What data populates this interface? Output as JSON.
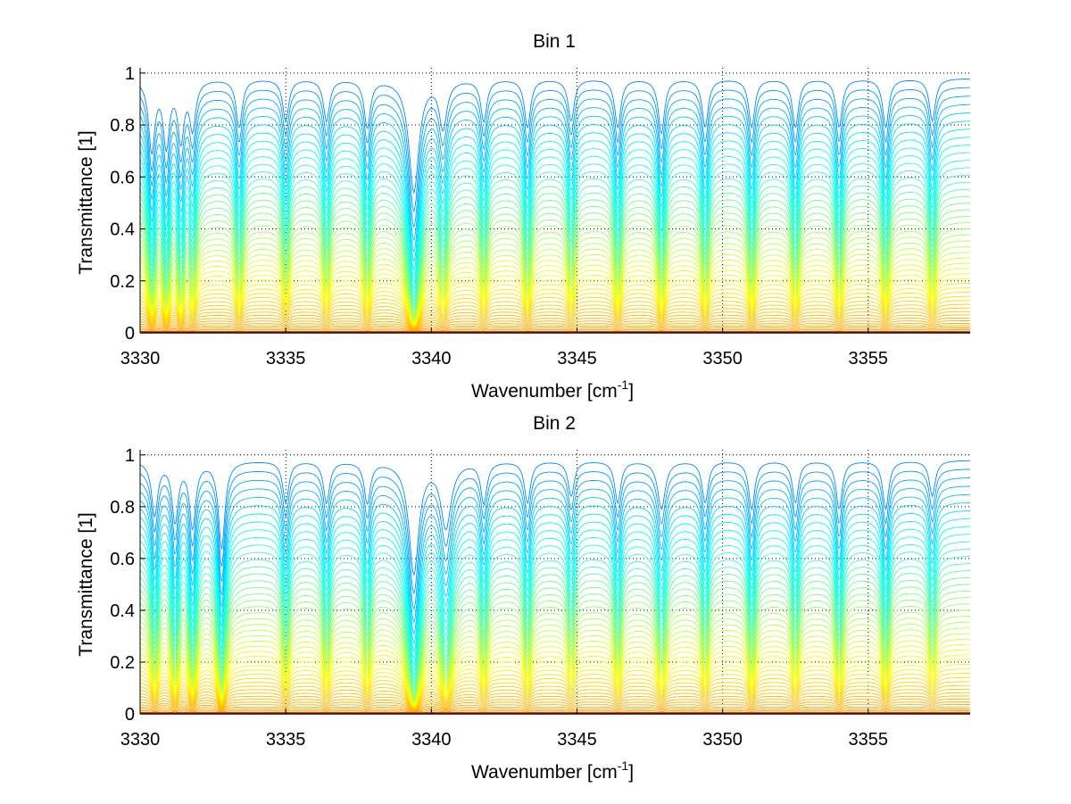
{
  "chart_data": [
    {
      "type": "line",
      "title": "Bin 1",
      "xlabel": "Wavenumber [cm",
      "xlabel_sup": "-1",
      "xlabel_close": "]",
      "ylabel": "Transmittance [1]",
      "xlim": [
        3330,
        3358.5
      ],
      "ylim": [
        0,
        1.02
      ],
      "xticks": [
        3330,
        3335,
        3340,
        3345,
        3350,
        3355
      ],
      "xtick_labels": [
        "3330",
        "3335",
        "3340",
        "3345",
        "3350",
        "3355"
      ],
      "yticks": [
        0,
        0.2,
        0.4,
        0.6,
        0.8,
        1
      ],
      "ytick_labels": [
        "0",
        "0.2",
        "0.4",
        "0.6",
        "0.8",
        "1"
      ],
      "grid": true,
      "grid_style": "dotted",
      "colormap": [
        "#00008f",
        "#0080ff",
        "#00ffff",
        "#80ff80",
        "#ffff00",
        "#ff8000",
        "#800000"
      ],
      "series_count": 48,
      "baseline_transmittance_range": [
        0.0,
        0.98
      ],
      "absorption_lines": [
        {
          "x": 3330.4,
          "depth": 0.55,
          "width": 0.12
        },
        {
          "x": 3330.9,
          "depth": 0.5,
          "width": 0.12
        },
        {
          "x": 3331.4,
          "depth": 0.45,
          "width": 0.12
        },
        {
          "x": 3331.8,
          "depth": 0.35,
          "width": 0.12
        },
        {
          "x": 3333.4,
          "depth": 0.35,
          "width": 0.12
        },
        {
          "x": 3335.0,
          "depth": 0.3,
          "width": 0.12
        },
        {
          "x": 3336.4,
          "depth": 0.3,
          "width": 0.12
        },
        {
          "x": 3337.8,
          "depth": 0.35,
          "width": 0.12
        },
        {
          "x": 3339.4,
          "depth": 0.97,
          "width": 0.18
        },
        {
          "x": 3340.4,
          "depth": 0.35,
          "width": 0.15
        },
        {
          "x": 3341.8,
          "depth": 0.3,
          "width": 0.12
        },
        {
          "x": 3343.3,
          "depth": 0.35,
          "width": 0.12
        },
        {
          "x": 3344.8,
          "depth": 0.3,
          "width": 0.12
        },
        {
          "x": 3346.4,
          "depth": 0.35,
          "width": 0.12
        },
        {
          "x": 3347.9,
          "depth": 0.4,
          "width": 0.12
        },
        {
          "x": 3349.4,
          "depth": 0.35,
          "width": 0.12
        },
        {
          "x": 3351.0,
          "depth": 0.35,
          "width": 0.12
        },
        {
          "x": 3352.5,
          "depth": 0.35,
          "width": 0.12
        },
        {
          "x": 3354.0,
          "depth": 0.35,
          "width": 0.12
        },
        {
          "x": 3355.6,
          "depth": 0.35,
          "width": 0.12
        },
        {
          "x": 3357.2,
          "depth": 0.3,
          "width": 0.12
        }
      ]
    },
    {
      "type": "line",
      "title": "Bin 2",
      "xlabel": "Wavenumber [cm",
      "xlabel_sup": "-1",
      "xlabel_close": "]",
      "ylabel": "Transmittance [1]",
      "xlim": [
        3330,
        3358.5
      ],
      "ylim": [
        0,
        1.02
      ],
      "xticks": [
        3330,
        3335,
        3340,
        3345,
        3350,
        3355
      ],
      "xtick_labels": [
        "3330",
        "3335",
        "3340",
        "3345",
        "3350",
        "3355"
      ],
      "yticks": [
        0,
        0.2,
        0.4,
        0.6,
        0.8,
        1
      ],
      "ytick_labels": [
        "0",
        "0.2",
        "0.4",
        "0.6",
        "0.8",
        "1"
      ],
      "grid": true,
      "grid_style": "dotted",
      "colormap": [
        "#00008f",
        "#0080ff",
        "#00ffff",
        "#80ff80",
        "#ffff00",
        "#ff8000",
        "#800000"
      ],
      "series_count": 48,
      "baseline_transmittance_range": [
        0.0,
        0.98
      ],
      "absorption_lines": [
        {
          "x": 3330.5,
          "depth": 0.4,
          "width": 0.12
        },
        {
          "x": 3331.2,
          "depth": 0.45,
          "width": 0.12
        },
        {
          "x": 3331.8,
          "depth": 0.5,
          "width": 0.12
        },
        {
          "x": 3332.8,
          "depth": 0.7,
          "width": 0.12
        },
        {
          "x": 3335.0,
          "depth": 0.3,
          "width": 0.12
        },
        {
          "x": 3336.4,
          "depth": 0.3,
          "width": 0.12
        },
        {
          "x": 3337.8,
          "depth": 0.3,
          "width": 0.12
        },
        {
          "x": 3339.4,
          "depth": 0.97,
          "width": 0.18
        },
        {
          "x": 3340.5,
          "depth": 0.5,
          "width": 0.2
        },
        {
          "x": 3341.8,
          "depth": 0.3,
          "width": 0.12
        },
        {
          "x": 3343.3,
          "depth": 0.3,
          "width": 0.12
        },
        {
          "x": 3344.8,
          "depth": 0.25,
          "width": 0.12
        },
        {
          "x": 3346.4,
          "depth": 0.3,
          "width": 0.12
        },
        {
          "x": 3347.9,
          "depth": 0.35,
          "width": 0.15
        },
        {
          "x": 3349.4,
          "depth": 0.3,
          "width": 0.12
        },
        {
          "x": 3351.0,
          "depth": 0.35,
          "width": 0.12
        },
        {
          "x": 3352.5,
          "depth": 0.3,
          "width": 0.12
        },
        {
          "x": 3354.0,
          "depth": 0.35,
          "width": 0.12
        },
        {
          "x": 3355.6,
          "depth": 0.35,
          "width": 0.12
        },
        {
          "x": 3357.2,
          "depth": 0.25,
          "width": 0.12
        }
      ]
    }
  ]
}
